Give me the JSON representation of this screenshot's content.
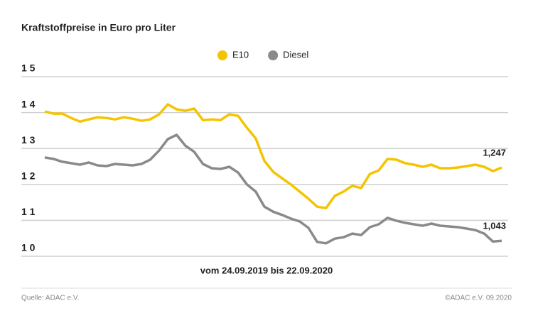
{
  "chart_data": {
    "type": "line",
    "title": "Kraftstoffpreise in Euro pro Liter",
    "x_label": "vom 24.09.2019 bis 22.09.2020",
    "source": "Quelle: ADAC e.V.",
    "copyright": "©ADAC e.V. 09.2020",
    "ylim": [
      1.0,
      1.5
    ],
    "yticks": [
      {
        "value": 1.0,
        "label": "1 0"
      },
      {
        "value": 1.1,
        "label": "1 1"
      },
      {
        "value": 1.2,
        "label": "1 2"
      },
      {
        "value": 1.3,
        "label": "1 3"
      },
      {
        "value": 1.4,
        "label": "1 4"
      },
      {
        "value": 1.5,
        "label": "1 5"
      }
    ],
    "grid": true,
    "legend": "top",
    "series": [
      {
        "name": "E10",
        "color": "#f5c400",
        "values": [
          1.403,
          1.397,
          1.397,
          1.385,
          1.375,
          1.381,
          1.387,
          1.385,
          1.381,
          1.387,
          1.383,
          1.377,
          1.381,
          1.395,
          1.423,
          1.409,
          1.405,
          1.411,
          1.379,
          1.381,
          1.379,
          1.395,
          1.391,
          1.358,
          1.328,
          1.265,
          1.235,
          1.217,
          1.2,
          1.18,
          1.16,
          1.138,
          1.134,
          1.168,
          1.18,
          1.196,
          1.19,
          1.229,
          1.239,
          1.271,
          1.269,
          1.259,
          1.255,
          1.249,
          1.255,
          1.245,
          1.245,
          1.247,
          1.251,
          1.255,
          1.249,
          1.237,
          1.247
        ],
        "value_labels": [
          null,
          null,
          null,
          null,
          null,
          null,
          null,
          null,
          null,
          null,
          null,
          null,
          null,
          null,
          null,
          null,
          null,
          null,
          null,
          null,
          null,
          null,
          null,
          null,
          null,
          null,
          null,
          null,
          null,
          null,
          null,
          null,
          null,
          null,
          null,
          null,
          null,
          null,
          null,
          null,
          null,
          null,
          null,
          null,
          null,
          null,
          null,
          null,
          null,
          null,
          null,
          null,
          "1,247"
        ]
      },
      {
        "name": "Diesel",
        "color": "#8a8a8a",
        "values": [
          1.275,
          1.271,
          1.263,
          1.259,
          1.255,
          1.261,
          1.253,
          1.251,
          1.257,
          1.255,
          1.253,
          1.257,
          1.269,
          1.294,
          1.326,
          1.338,
          1.308,
          1.291,
          1.257,
          1.245,
          1.243,
          1.249,
          1.233,
          1.2,
          1.18,
          1.138,
          1.124,
          1.115,
          1.105,
          1.097,
          1.079,
          1.04,
          1.036,
          1.049,
          1.053,
          1.063,
          1.059,
          1.081,
          1.089,
          1.107,
          1.099,
          1.093,
          1.089,
          1.085,
          1.091,
          1.085,
          1.083,
          1.081,
          1.077,
          1.073,
          1.063,
          1.041,
          1.043
        ],
        "value_labels": [
          null,
          null,
          null,
          null,
          null,
          null,
          null,
          null,
          null,
          null,
          null,
          null,
          null,
          null,
          null,
          null,
          null,
          null,
          null,
          null,
          null,
          null,
          null,
          null,
          null,
          null,
          null,
          null,
          null,
          null,
          null,
          null,
          null,
          null,
          null,
          null,
          null,
          null,
          null,
          null,
          null,
          null,
          null,
          null,
          null,
          null,
          null,
          null,
          null,
          null,
          null,
          null,
          "1,043"
        ]
      }
    ]
  }
}
